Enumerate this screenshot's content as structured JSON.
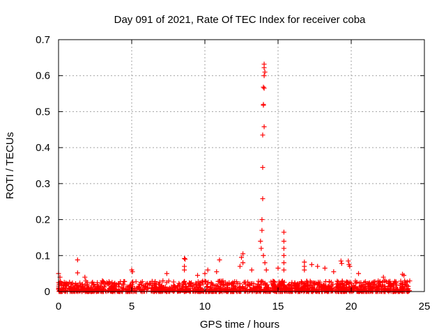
{
  "chart_data": {
    "type": "scatter",
    "title": "Day 091 of 2021, Rate Of TEC Index for receiver coba",
    "xlabel": "GPS time / hours",
    "ylabel": "ROTI / TECUs",
    "xlim": [
      0,
      25
    ],
    "ylim": [
      0,
      0.7
    ],
    "xticks": [
      0,
      5,
      10,
      15,
      20,
      25
    ],
    "yticks": [
      0,
      0.1,
      0.2,
      0.3,
      0.4,
      0.5,
      0.6,
      0.7
    ],
    "xtick_labels": [
      "0",
      "5",
      "10",
      "15",
      "20",
      "25"
    ],
    "ytick_labels": [
      "0",
      "0.1",
      "0.2",
      "0.3",
      "0.4",
      "0.5",
      "0.6",
      "0.7"
    ],
    "grid": true,
    "marker": "+",
    "color": "#ff0000",
    "x_range_of_data": [
      0,
      24
    ],
    "baseline_noise_max": 0.03,
    "points": [
      {
        "x": 0.0,
        "y": 0.05
      },
      {
        "x": 0.1,
        "y": 0.04
      },
      {
        "x": 1.3,
        "y": 0.088
      },
      {
        "x": 1.3,
        "y": 0.052
      },
      {
        "x": 1.8,
        "y": 0.04
      },
      {
        "x": 3.0,
        "y": 0.03
      },
      {
        "x": 5.0,
        "y": 0.06
      },
      {
        "x": 5.05,
        "y": 0.055
      },
      {
        "x": 7.4,
        "y": 0.05
      },
      {
        "x": 8.6,
        "y": 0.092
      },
      {
        "x": 8.65,
        "y": 0.09
      },
      {
        "x": 8.6,
        "y": 0.07
      },
      {
        "x": 8.6,
        "y": 0.06
      },
      {
        "x": 9.5,
        "y": 0.045
      },
      {
        "x": 10.0,
        "y": 0.05
      },
      {
        "x": 10.2,
        "y": 0.06
      },
      {
        "x": 10.8,
        "y": 0.055
      },
      {
        "x": 11.0,
        "y": 0.088
      },
      {
        "x": 12.4,
        "y": 0.07
      },
      {
        "x": 12.5,
        "y": 0.095
      },
      {
        "x": 12.6,
        "y": 0.105
      },
      {
        "x": 12.6,
        "y": 0.08
      },
      {
        "x": 13.2,
        "y": 0.06
      },
      {
        "x": 13.8,
        "y": 0.14
      },
      {
        "x": 13.85,
        "y": 0.12
      },
      {
        "x": 13.9,
        "y": 0.17
      },
      {
        "x": 13.9,
        "y": 0.2
      },
      {
        "x": 13.95,
        "y": 0.258
      },
      {
        "x": 13.95,
        "y": 0.345
      },
      {
        "x": 13.95,
        "y": 0.435
      },
      {
        "x": 14.0,
        "y": 0.52
      },
      {
        "x": 14.0,
        "y": 0.518
      },
      {
        "x": 14.05,
        "y": 0.458
      },
      {
        "x": 14.0,
        "y": 0.568
      },
      {
        "x": 14.05,
        "y": 0.565
      },
      {
        "x": 14.05,
        "y": 0.6
      },
      {
        "x": 14.1,
        "y": 0.61
      },
      {
        "x": 14.05,
        "y": 0.622
      },
      {
        "x": 14.05,
        "y": 0.632
      },
      {
        "x": 14.0,
        "y": 0.1
      },
      {
        "x": 14.1,
        "y": 0.08
      },
      {
        "x": 14.2,
        "y": 0.06
      },
      {
        "x": 15.0,
        "y": 0.065
      },
      {
        "x": 15.4,
        "y": 0.165
      },
      {
        "x": 15.4,
        "y": 0.14
      },
      {
        "x": 15.4,
        "y": 0.12
      },
      {
        "x": 15.4,
        "y": 0.1
      },
      {
        "x": 15.4,
        "y": 0.08
      },
      {
        "x": 15.4,
        "y": 0.06
      },
      {
        "x": 16.8,
        "y": 0.082
      },
      {
        "x": 16.8,
        "y": 0.07
      },
      {
        "x": 16.8,
        "y": 0.06
      },
      {
        "x": 17.3,
        "y": 0.075
      },
      {
        "x": 17.7,
        "y": 0.07
      },
      {
        "x": 18.2,
        "y": 0.065
      },
      {
        "x": 18.8,
        "y": 0.055
      },
      {
        "x": 19.3,
        "y": 0.085
      },
      {
        "x": 19.35,
        "y": 0.078
      },
      {
        "x": 19.8,
        "y": 0.085
      },
      {
        "x": 19.85,
        "y": 0.075
      },
      {
        "x": 19.9,
        "y": 0.07
      },
      {
        "x": 20.5,
        "y": 0.05
      },
      {
        "x": 22.2,
        "y": 0.04
      },
      {
        "x": 23.5,
        "y": 0.048
      },
      {
        "x": 23.6,
        "y": 0.045
      }
    ]
  }
}
